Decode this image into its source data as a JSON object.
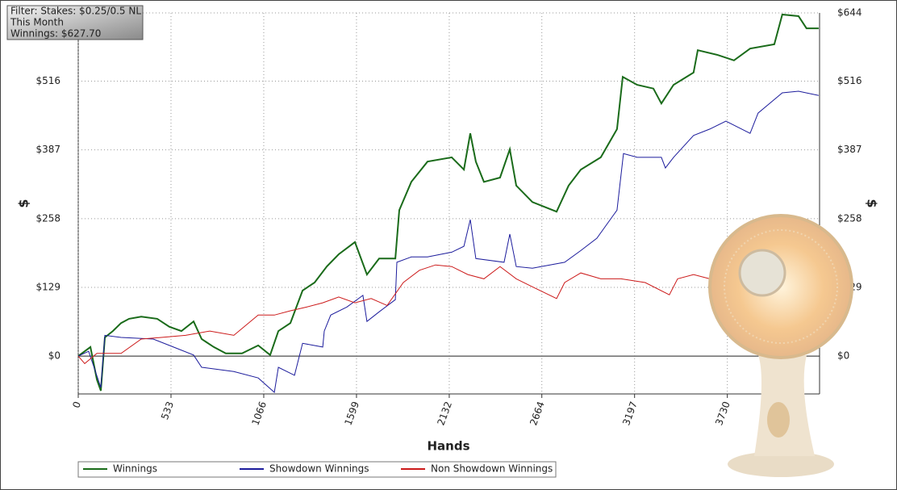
{
  "chart_data": {
    "type": "line",
    "filter": [
      "Filter: Stakes: $0.25/0.5 NL",
      "This Month",
      "Winnings: $627.70"
    ],
    "xlabel": "Hands",
    "ylabel": "$",
    "y2label": "$",
    "xlim": [
      0,
      4260
    ],
    "xticks": [
      0,
      533,
      1066,
      1599,
      2132,
      2664,
      3197,
      3730
    ],
    "ylim": [
      -71,
      644
    ],
    "yticks": [
      {
        "value": 0,
        "label": "$0"
      },
      {
        "value": 129,
        "label": "$129"
      },
      {
        "value": 258,
        "label": "$258"
      },
      {
        "value": 387,
        "label": "$387"
      },
      {
        "value": 516,
        "label": "$516"
      },
      {
        "value": 644,
        "label": "$644"
      }
    ],
    "grid": true,
    "series": [
      {
        "name": "Winnings",
        "color": "#1a6b1a",
        "x": [
          0,
          70,
          107,
          130,
          153,
          199,
          246,
          292,
          362,
          454,
          524,
          593,
          663,
          709,
          779,
          848,
          941,
          1034,
          1103,
          1150,
          1219,
          1289,
          1358,
          1428,
          1497,
          1590,
          1659,
          1729,
          1822,
          1845,
          1914,
          2007,
          2146,
          2216,
          2253,
          2285,
          2331,
          2424,
          2480,
          2517,
          2610,
          2749,
          2818,
          2888,
          3003,
          3096,
          3129,
          3212,
          3305,
          3351,
          3421,
          3536,
          3560,
          3676,
          3768,
          3861,
          4000,
          4046,
          4139,
          4185,
          4255
        ],
        "values": [
          0,
          17,
          -44,
          -65,
          35,
          47,
          62,
          70,
          74,
          70,
          55,
          47,
          65,
          32,
          17,
          5,
          5,
          20,
          2,
          47,
          62,
          123,
          138,
          168,
          191,
          214,
          153,
          183,
          183,
          274,
          327,
          365,
          373,
          350,
          418,
          365,
          327,
          335,
          388,
          320,
          289,
          271,
          320,
          350,
          373,
          426,
          524,
          509,
          502,
          474,
          509,
          532,
          574,
          565,
          555,
          577,
          585,
          641,
          638,
          615,
          615
        ]
      },
      {
        "name": "Showdown Winnings",
        "color": "#1c1c9c",
        "x": [
          0,
          60,
          130,
          153,
          246,
          431,
          547,
          663,
          709,
          894,
          1034,
          1127,
          1150,
          1243,
          1289,
          1405,
          1414,
          1451,
          1543,
          1636,
          1659,
          1729,
          1822,
          1831,
          1914,
          2007,
          2146,
          2216,
          2253,
          2285,
          2447,
          2480,
          2517,
          2610,
          2795,
          2888,
          2980,
          3096,
          3133,
          3212,
          3351,
          3374,
          3421,
          3536,
          3629,
          3722,
          3861,
          3907,
          4046,
          4139,
          4255
        ],
        "values": [
          0,
          9,
          -59,
          39,
          35,
          32,
          17,
          2,
          -21,
          -29,
          -41,
          -68,
          -21,
          -36,
          24,
          17,
          47,
          77,
          92,
          114,
          65,
          83,
          106,
          176,
          186,
          186,
          195,
          206,
          256,
          183,
          176,
          229,
          168,
          165,
          176,
          198,
          221,
          274,
          380,
          373,
          373,
          353,
          373,
          414,
          426,
          441,
          418,
          456,
          494,
          497,
          489
        ]
      },
      {
        "name": "Non Showdown Winnings",
        "color": "#cc1a1a",
        "x": [
          0,
          37,
          107,
          246,
          362,
          478,
          617,
          756,
          894,
          1034,
          1127,
          1219,
          1312,
          1405,
          1497,
          1590,
          1683,
          1775,
          1868,
          1961,
          2053,
          2146,
          2239,
          2331,
          2424,
          2517,
          2610,
          2749,
          2795,
          2888,
          3003,
          3119,
          3258,
          3397,
          3444,
          3536,
          3629
        ],
        "values": [
          0,
          -14,
          5,
          5,
          32,
          35,
          39,
          47,
          39,
          77,
          77,
          85,
          92,
          100,
          111,
          100,
          108,
          95,
          138,
          161,
          171,
          168,
          153,
          145,
          168,
          145,
          130,
          108,
          138,
          156,
          145,
          145,
          138,
          115,
          145,
          153,
          145
        ]
      }
    ]
  }
}
